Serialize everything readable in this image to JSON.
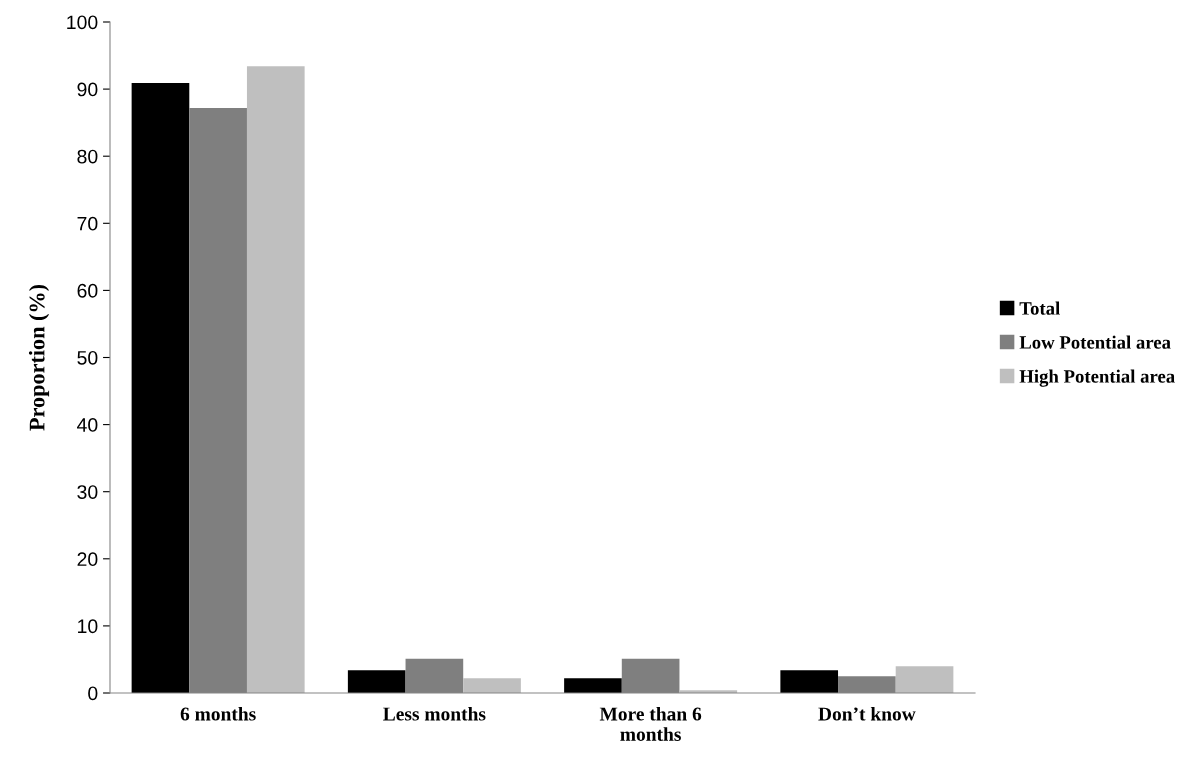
{
  "chart_data": {
    "type": "bar",
    "ylabel": "Proportion (%)",
    "categories": [
      "6 months",
      "Less months",
      "More than 6\nmonths",
      "Don’t know"
    ],
    "series": [
      {
        "name": "Total",
        "color": "#000000",
        "values": [
          90.9,
          3.4,
          2.2,
          3.4
        ]
      },
      {
        "name": "Low Potential area",
        "color": "#7f7f7f",
        "values": [
          87.2,
          5.1,
          5.1,
          2.5
        ]
      },
      {
        "name": "High Potential area",
        "color": "#bfbfbf",
        "values": [
          93.4,
          2.2,
          0.4,
          4.0
        ]
      }
    ],
    "ylim": [
      0,
      100
    ],
    "yticks": [
      0,
      10,
      20,
      30,
      40,
      50,
      60,
      70,
      80,
      90,
      100
    ],
    "grid": false,
    "legend": "right"
  }
}
